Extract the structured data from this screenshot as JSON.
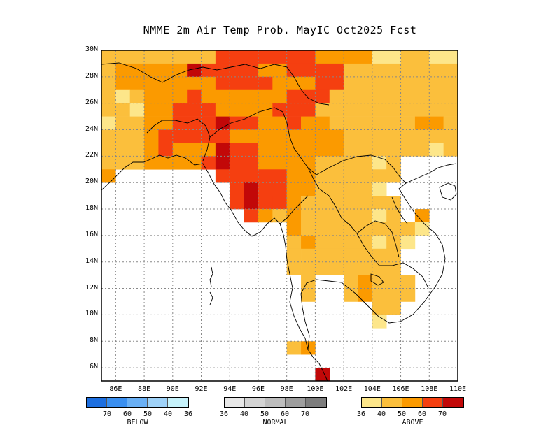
{
  "title": "NMME 2m Air Temp Prob. MayIC  Oct2025 Fcst",
  "y_ticks": [
    "30N",
    "28N",
    "26N",
    "24N",
    "22N",
    "20N",
    "18N",
    "16N",
    "14N",
    "12N",
    "10N",
    "8N",
    "6N"
  ],
  "x_ticks": [
    "86E",
    "88E",
    "90E",
    "92E",
    "94E",
    "96E",
    "98E",
    "100E",
    "102E",
    "104E",
    "106E",
    "108E",
    "110E"
  ],
  "colors": {
    "above": [
      "#fde68a",
      "#fbbf3c",
      "#fb9a00",
      "#f53f10",
      "#c20808"
    ],
    "below": [
      "#1d6fe0",
      "#3a8ff0",
      "#6ab0f5",
      "#9fd2f8",
      "#c6f2fb"
    ],
    "normal": [
      "#e7e7e7",
      "#d4d4d4",
      "#bdbdbd",
      "#9e9e9e",
      "#7d7d7d"
    ]
  },
  "legends": {
    "below": {
      "name": "BELOW",
      "ticks": [
        "70",
        "60",
        "50",
        "40",
        "36"
      ]
    },
    "normal": {
      "name": "NORMAL",
      "ticks": [
        "36",
        "40",
        "50",
        "60",
        "70"
      ]
    },
    "above": {
      "name": "ABOVE",
      "ticks": [
        "36",
        "40",
        "50",
        "60",
        "70"
      ]
    }
  },
  "chart_data": {
    "type": "heatmap",
    "title": "NMME 2m Air Temp Prob. MayIC  Oct2025 Fcst",
    "x_range_deg_E": [
      85,
      110
    ],
    "y_range_deg_N": [
      5,
      30
    ],
    "grid": "dotted every 2 degrees",
    "cell_size_deg": 1,
    "category": "above-normal probability (%)",
    "rows_lat_top_to_bottom": [
      {
        "lat": 29.5,
        "cells": [
          [
            85,
            93,
            1
          ],
          [
            93,
            100,
            3
          ],
          [
            100,
            102,
            2
          ],
          [
            102,
            104,
            2
          ],
          [
            104,
            106,
            0
          ],
          [
            106,
            108,
            1
          ],
          [
            108,
            110,
            0
          ]
        ]
      },
      {
        "lat": 28.5,
        "cells": [
          [
            85,
            86,
            1
          ],
          [
            86,
            91,
            2
          ],
          [
            91,
            92,
            4
          ],
          [
            92,
            96,
            3
          ],
          [
            96,
            98,
            2
          ],
          [
            98,
            100,
            3
          ],
          [
            100,
            102,
            3
          ],
          [
            102,
            110,
            1
          ]
        ]
      },
      {
        "lat": 27.5,
        "cells": [
          [
            85,
            86,
            1
          ],
          [
            86,
            93,
            2
          ],
          [
            93,
            97,
            3
          ],
          [
            97,
            100,
            2
          ],
          [
            100,
            102,
            3
          ],
          [
            102,
            110,
            1
          ]
        ]
      },
      {
        "lat": 26.5,
        "cells": [
          [
            85,
            86,
            1
          ],
          [
            86,
            87,
            0
          ],
          [
            87,
            88,
            1
          ],
          [
            88,
            91,
            2
          ],
          [
            91,
            92,
            3
          ],
          [
            92,
            96,
            2
          ],
          [
            96,
            98,
            2
          ],
          [
            98,
            101,
            3
          ],
          [
            101,
            110,
            1
          ]
        ]
      },
      {
        "lat": 25.5,
        "cells": [
          [
            85,
            87,
            1
          ],
          [
            87,
            88,
            0
          ],
          [
            88,
            90,
            2
          ],
          [
            90,
            93,
            3
          ],
          [
            93,
            95,
            2
          ],
          [
            95,
            97,
            2
          ],
          [
            97,
            98,
            3
          ],
          [
            98,
            100,
            3
          ],
          [
            100,
            102,
            1
          ],
          [
            102,
            110,
            1
          ]
        ]
      },
      {
        "lat": 24.5,
        "cells": [
          [
            85,
            86,
            0
          ],
          [
            86,
            88,
            1
          ],
          [
            88,
            90,
            2
          ],
          [
            90,
            92,
            3
          ],
          [
            92,
            93,
            3
          ],
          [
            93,
            94,
            4
          ],
          [
            94,
            96,
            3
          ],
          [
            96,
            98,
            2
          ],
          [
            98,
            99,
            3
          ],
          [
            99,
            101,
            2
          ],
          [
            101,
            107,
            1
          ],
          [
            107,
            109,
            2
          ],
          [
            109,
            110,
            1
          ]
        ]
      },
      {
        "lat": 23.5,
        "cells": [
          [
            85,
            86,
            1
          ],
          [
            86,
            88,
            1
          ],
          [
            88,
            89,
            2
          ],
          [
            89,
            92,
            3
          ],
          [
            92,
            94,
            3
          ],
          [
            94,
            96,
            2
          ],
          [
            96,
            98,
            2
          ],
          [
            98,
            100,
            2
          ],
          [
            100,
            102,
            2
          ],
          [
            102,
            110,
            1
          ]
        ]
      },
      {
        "lat": 22.5,
        "cells": [
          [
            85,
            86,
            1
          ],
          [
            86,
            88,
            1
          ],
          [
            88,
            89,
            2
          ],
          [
            89,
            90,
            3
          ],
          [
            90,
            93,
            2
          ],
          [
            93,
            94,
            4
          ],
          [
            94,
            96,
            3
          ],
          [
            96,
            98,
            2
          ],
          [
            98,
            102,
            2
          ],
          [
            102,
            104,
            1
          ],
          [
            104,
            106,
            1
          ],
          [
            106,
            108,
            1
          ],
          [
            108,
            109,
            0
          ],
          [
            109,
            110,
            1
          ]
        ]
      },
      {
        "lat": 21.5,
        "cells": [
          [
            85,
            86,
            1
          ],
          [
            86,
            88,
            1
          ],
          [
            88,
            92,
            2
          ],
          [
            92,
            93,
            3
          ],
          [
            93,
            94,
            4
          ],
          [
            94,
            96,
            3
          ],
          [
            96,
            98,
            2
          ],
          [
            98,
            100,
            2
          ],
          [
            100,
            102,
            1
          ],
          [
            102,
            104,
            1
          ],
          [
            104,
            105,
            0
          ],
          [
            105,
            106,
            1
          ]
        ]
      },
      {
        "lat": 20.5,
        "cells": [
          [
            85,
            86,
            2
          ],
          [
            93,
            96,
            3
          ],
          [
            96,
            98,
            3
          ],
          [
            98,
            100,
            2
          ],
          [
            100,
            102,
            1
          ],
          [
            102,
            104,
            1
          ],
          [
            104,
            106,
            1
          ]
        ]
      },
      {
        "lat": 19.5,
        "cells": [
          [
            94,
            95,
            3
          ],
          [
            95,
            96,
            4
          ],
          [
            96,
            98,
            3
          ],
          [
            98,
            100,
            2
          ],
          [
            100,
            102,
            1
          ],
          [
            102,
            104,
            1
          ],
          [
            104,
            105,
            0
          ]
        ]
      },
      {
        "lat": 18.5,
        "cells": [
          [
            94,
            95,
            3
          ],
          [
            95,
            96,
            4
          ],
          [
            96,
            97,
            3
          ],
          [
            97,
            98,
            3
          ],
          [
            98,
            99,
            2
          ],
          [
            99,
            100,
            1
          ],
          [
            100,
            104,
            1
          ],
          [
            104,
            106,
            1
          ]
        ]
      },
      {
        "lat": 17.5,
        "cells": [
          [
            95,
            96,
            3
          ],
          [
            96,
            97,
            2
          ],
          [
            97,
            98,
            1
          ],
          [
            98,
            99,
            2
          ],
          [
            99,
            100,
            1
          ],
          [
            100,
            104,
            1
          ],
          [
            104,
            105,
            0
          ],
          [
            105,
            106,
            1
          ],
          [
            107,
            108,
            2
          ]
        ]
      },
      {
        "lat": 16.5,
        "cells": [
          [
            98,
            99,
            2
          ],
          [
            99,
            100,
            1
          ],
          [
            100,
            106,
            1
          ],
          [
            106,
            107,
            1
          ],
          [
            107,
            108,
            0
          ]
        ]
      },
      {
        "lat": 15.5,
        "cells": [
          [
            98,
            99,
            1
          ],
          [
            99,
            100,
            2
          ],
          [
            100,
            103,
            1
          ],
          [
            103,
            104,
            1
          ],
          [
            104,
            105,
            0
          ],
          [
            105,
            106,
            1
          ],
          [
            106,
            107,
            0
          ]
        ]
      },
      {
        "lat": 14.5,
        "cells": [
          [
            98,
            99,
            1
          ],
          [
            99,
            103,
            1
          ],
          [
            103,
            106,
            1
          ]
        ]
      },
      {
        "lat": 13.5,
        "cells": [
          [
            98,
            99,
            1
          ],
          [
            99,
            102,
            1
          ],
          [
            102,
            104,
            1
          ],
          [
            104,
            106,
            1
          ]
        ]
      },
      {
        "lat": 12.5,
        "cells": [
          [
            99,
            100,
            1
          ],
          [
            102,
            103,
            1
          ],
          [
            103,
            104,
            2
          ],
          [
            104,
            106,
            1
          ],
          [
            106,
            107,
            1
          ]
        ]
      },
      {
        "lat": 11.5,
        "cells": [
          [
            99,
            100,
            1
          ],
          [
            102,
            103,
            1
          ],
          [
            103,
            104,
            2
          ],
          [
            104,
            105,
            1
          ],
          [
            105,
            107,
            1
          ]
        ]
      },
      {
        "lat": 10.5,
        "cells": [
          [
            104,
            105,
            1
          ],
          [
            105,
            106,
            1
          ]
        ]
      },
      {
        "lat": 9.5,
        "cells": [
          [
            104,
            105,
            0
          ]
        ]
      },
      {
        "lat": 7.5,
        "cells": [
          [
            98,
            99,
            1
          ],
          [
            99,
            100,
            2
          ]
        ]
      },
      {
        "lat": 5.5,
        "cells": [
          [
            100,
            101,
            4
          ]
        ]
      }
    ]
  }
}
